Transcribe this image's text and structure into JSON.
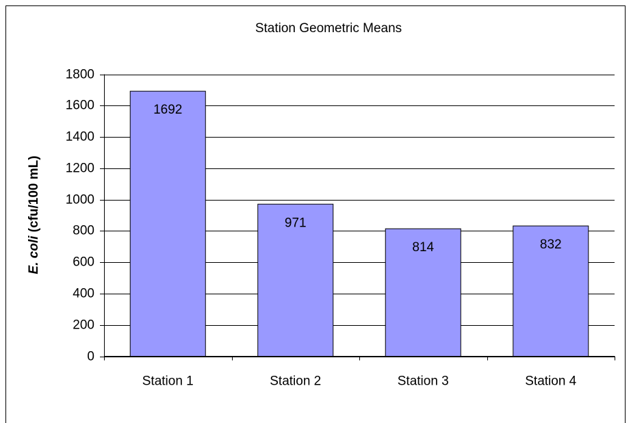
{
  "chart_data": {
    "type": "bar",
    "title": "Station Geometric Means",
    "y_label_italic": "E. coli",
    "y_label_rest": "(cfu/100 mL)",
    "categories": [
      "Station 1",
      "Station 2",
      "Station 3",
      "Station 4"
    ],
    "values": [
      1692,
      971,
      814,
      832
    ],
    "color": "#9999ff",
    "ylim": [
      0,
      1800
    ],
    "yticks": [
      0,
      200,
      400,
      600,
      800,
      1000,
      1200,
      1400,
      1600,
      1800
    ],
    "grid": true
  }
}
